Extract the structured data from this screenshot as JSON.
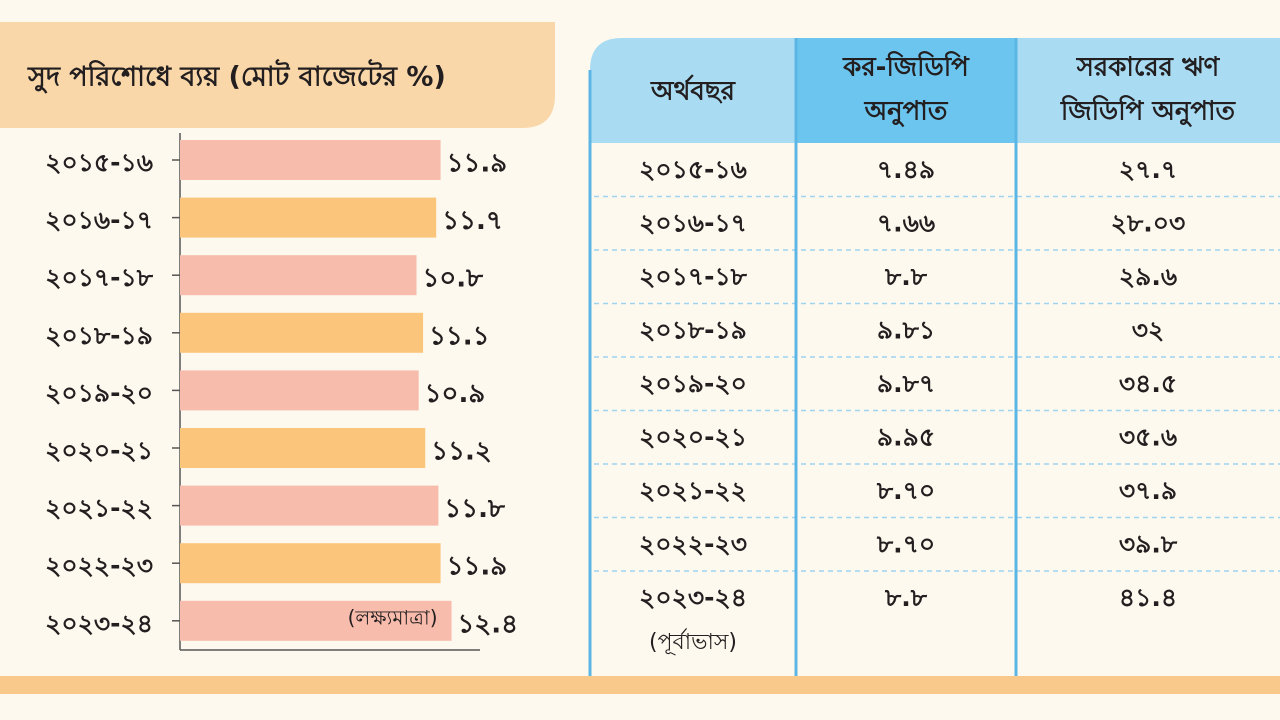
{
  "chart_data": {
    "type": "bar",
    "orientation": "horizontal",
    "title": "সুদ পরিশোধে ব্যয় (মোট বাজেটের %)",
    "categories": [
      "২০১৫-১৬",
      "২০১৬-১৭",
      "২০১৭-১৮",
      "২০১৮-১৯",
      "২০১৯-২০",
      "২০২০-২১",
      "২০২১-২২",
      "২০২২-২৩",
      "২০২৩-২৪"
    ],
    "values": [
      11.9,
      11.7,
      10.8,
      11.1,
      10.9,
      11.2,
      11.8,
      11.9,
      12.4
    ],
    "value_labels": [
      "১১.৯",
      "১১.৭",
      "১০.৮",
      "১১.১",
      "১০.৯",
      "১১.২",
      "১১.৮",
      "১১.৯",
      "১২.৪"
    ],
    "colors": [
      "#f8bcac",
      "#fbc67c",
      "#f8bcac",
      "#fbc67c",
      "#f8bcac",
      "#fbc67c",
      "#f8bcac",
      "#fbc67c",
      "#f8bcac"
    ],
    "xlim": [
      0,
      13.7
    ],
    "annotation": "(লক্ষ্যমাত্রা)"
  },
  "table": {
    "header": [
      [
        "অর্থবছর"
      ],
      [
        "কর-জিডিপি",
        "অনুপাত"
      ],
      [
        "সরকারের ঋণ",
        "জিডিপি অনুপাত"
      ]
    ],
    "rows": [
      [
        "২০১৫-১৬",
        "৭.৪৯",
        "২৭.৭"
      ],
      [
        "২০১৬-১৭",
        "৭.৬৬",
        "২৮.০৩"
      ],
      [
        "২০১৭-১৮",
        "৮.৮",
        "২৯.৬"
      ],
      [
        "২০১৮-১৯",
        "৯.৮১",
        "৩২"
      ],
      [
        "২০১৯-২০",
        "৯.৮৭",
        "৩৪.৫"
      ],
      [
        "২০২০-২১",
        "৯.৯৫",
        "৩৫.৬"
      ],
      [
        "২০২১-২২",
        "৮.৭০",
        "৩৭.৯"
      ],
      [
        "২০২২-২৩",
        "৮.৭০",
        "৩৯.৮"
      ],
      [
        "২০২৩-২৪",
        "৮.৮",
        "৪১.৪"
      ]
    ],
    "forecast_note": "(পূর্বাভাস)"
  }
}
